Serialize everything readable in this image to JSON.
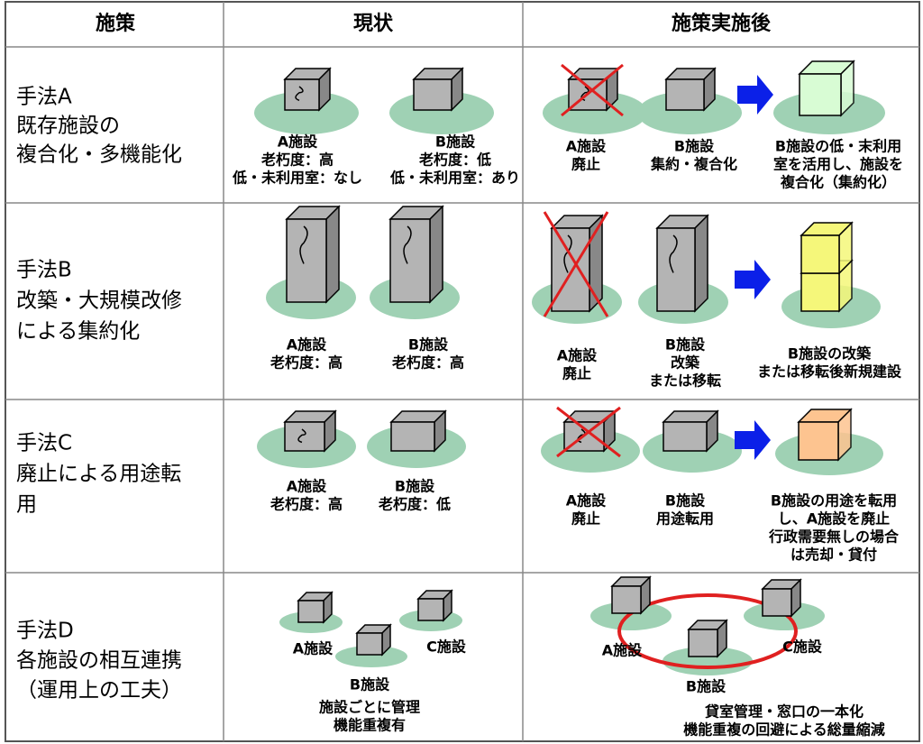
{
  "header": {
    "columns": [
      "施策",
      "現状",
      "施策実施後"
    ]
  },
  "rows": [
    {
      "method": [
        "手法A",
        "既存施設の",
        "複合化・多機能化"
      ],
      "current": [
        [
          "A施設",
          "老朽度：高",
          "低・未利用室：なし"
        ],
        [
          "B施設",
          "老朽度：低",
          "低・未利用室：あり"
        ]
      ],
      "after": [
        [
          "A施設",
          "廃止"
        ],
        [
          "B施設",
          "集約・複合化"
        ],
        [
          "B施設の低・末利用",
          "室を活用し、施設を",
          "複合化（集約化）"
        ]
      ]
    },
    {
      "method": [
        "手法B",
        "改築・大規模改修",
        "による集約化"
      ],
      "current": [
        [
          "A施設",
          "老朽度：高"
        ],
        [
          "B施設",
          "老朽度：高"
        ]
      ],
      "after": [
        [
          "A施設",
          "廃止"
        ],
        [
          "B施設",
          "改築",
          "または移転"
        ],
        [
          "B施設の改築",
          "または移転後新規建設"
        ]
      ]
    },
    {
      "method": [
        "手法C",
        "廃止による用途転",
        "用"
      ],
      "current": [
        [
          "A施設",
          "老朽度：高"
        ],
        [
          "B施設",
          "老朽度：低"
        ]
      ],
      "after": [
        [
          "A施設",
          "廃止"
        ],
        [
          "B施設",
          "用途転用"
        ],
        [
          "B施設の用途を転用",
          "し、A施設を廃止",
          "行政需要無しの場合",
          "は売却・貸付"
        ]
      ]
    },
    {
      "method": [
        "手法D",
        "各施設の相互連携",
        "（運用上の工夫）"
      ],
      "current": [
        [
          "A施設"
        ],
        [
          "C施設"
        ],
        [
          "B施設"
        ],
        [
          "施設ごとに管理",
          "機能重複有"
        ]
      ],
      "after": [
        [
          "A施設"
        ],
        [
          "C施設"
        ],
        [
          "B施設"
        ],
        [
          "貸室管理・窓口の一本化",
          "機能重複の回避による総量縮減"
        ]
      ]
    }
  ]
}
